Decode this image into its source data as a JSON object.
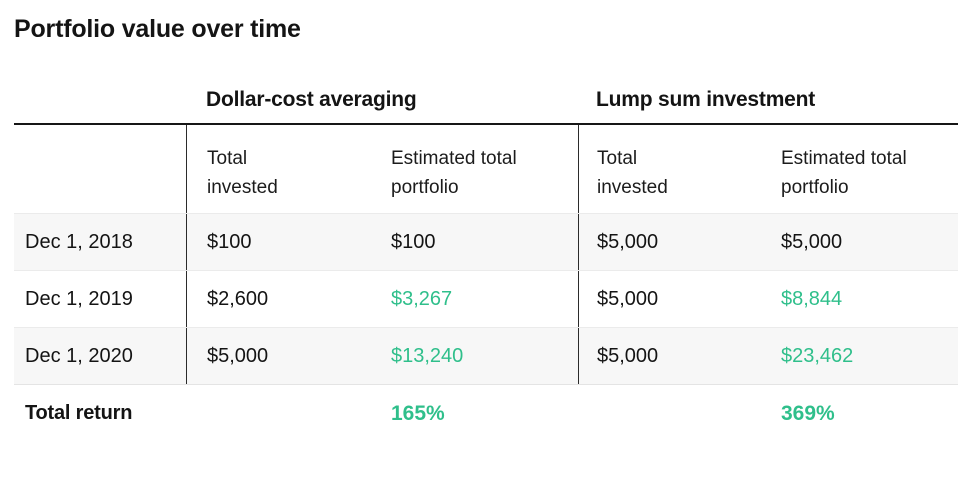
{
  "title": "Portfolio value over time",
  "colors": {
    "positive_green": "#2fbf8b",
    "text": "#141414",
    "alt_row_bg": "#f7f7f7",
    "header_rule": "#161616"
  },
  "table": {
    "group_headers": {
      "dca": "Dollar-cost averaging",
      "lump": "Lump sum investment"
    },
    "column_headers": {
      "dca_invested": "Total invested",
      "dca_portfolio": "Estimated total portfolio",
      "lump_invested": "Total invested",
      "lump_portfolio": "Estimated total portfolio"
    },
    "rows": [
      {
        "date": "Dec 1, 2018",
        "dca_invested": "$100",
        "dca_portfolio": "$100",
        "lump_invested": "$5,000",
        "lump_portfolio": "$5,000"
      },
      {
        "date": "Dec 1, 2019",
        "dca_invested": "$2,600",
        "dca_portfolio": "$3,267",
        "lump_invested": "$5,000",
        "lump_portfolio": "$8,844"
      },
      {
        "date": "Dec 1, 2020",
        "dca_invested": "$5,000",
        "dca_portfolio": "$13,240",
        "lump_invested": "$5,000",
        "lump_portfolio": "$23,462"
      }
    ],
    "total": {
      "label": "Total return",
      "dca_return": "165%",
      "lump_return": "369%"
    }
  },
  "chart_data": {
    "type": "table",
    "title": "Portfolio value over time",
    "column_groups": [
      "Dollar-cost averaging",
      "Lump sum investment"
    ],
    "columns": [
      "",
      "Total invested",
      "Estimated total portfolio",
      "Total invested",
      "Estimated total portfolio"
    ],
    "rows": [
      [
        "Dec 1, 2018",
        "$100",
        "$100",
        "$5,000",
        "$5,000"
      ],
      [
        "Dec 1, 2019",
        "$2,600",
        "$3,267",
        "$5,000",
        "$8,844"
      ],
      [
        "Dec 1, 2020",
        "$5,000",
        "$13,240",
        "$5,000",
        "$23,462"
      ],
      [
        "Total return",
        "",
        "165%",
        "",
        "369%"
      ]
    ],
    "highlight_color": "#2fbf8b",
    "highlighted_values": [
      "$3,267",
      "$8,844",
      "$13,240",
      "$23,462",
      "165%",
      "369%"
    ]
  }
}
